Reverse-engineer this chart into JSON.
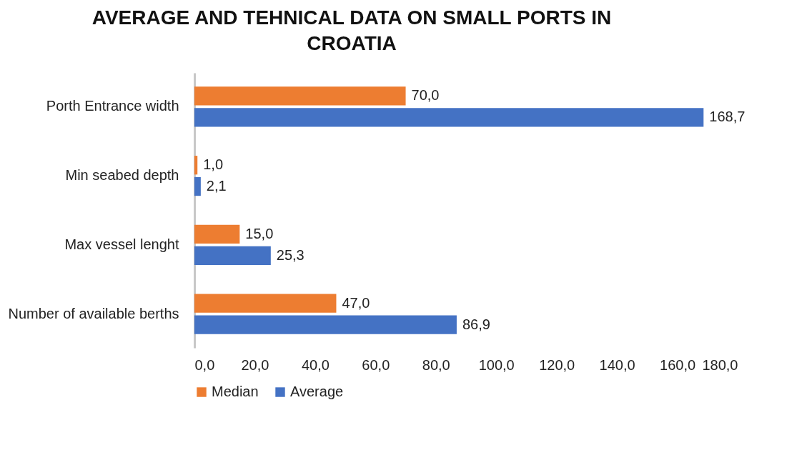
{
  "chart_data": {
    "type": "bar",
    "orientation": "horizontal",
    "title": "AVERAGE AND TEHNICAL DATA ON SMALL PORTS IN CROATIA",
    "categories": [
      "Porth Entrance width",
      "Min seabed depth",
      "Max vessel lenght",
      "Number of available berths"
    ],
    "series": [
      {
        "name": "Median",
        "color": "#ed7d31",
        "values": [
          70.0,
          1.0,
          15.0,
          47.0
        ],
        "value_labels": [
          "70,0",
          "1,0",
          "15,0",
          "47,0"
        ]
      },
      {
        "name": "Average",
        "color": "#4472c4",
        "values": [
          168.7,
          2.1,
          25.3,
          86.9
        ],
        "value_labels": [
          "168,7",
          "2,1",
          "25,3",
          "86,9"
        ]
      }
    ],
    "xlim": [
      0,
      180
    ],
    "xticks": [
      {
        "value": 0,
        "label": "0,0"
      },
      {
        "value": 20,
        "label": "20,0"
      },
      {
        "value": 40,
        "label": "40,0"
      },
      {
        "value": 60,
        "label": "60,0"
      },
      {
        "value": 80,
        "label": "80,0"
      },
      {
        "value": 100,
        "label": "100,0"
      },
      {
        "value": 120,
        "label": "120,0"
      },
      {
        "value": 140,
        "label": "140,0"
      },
      {
        "value": 160,
        "label": "160,0"
      },
      {
        "value": 180,
        "label": "180,0"
      }
    ],
    "grid": false,
    "legend": "bottom"
  }
}
